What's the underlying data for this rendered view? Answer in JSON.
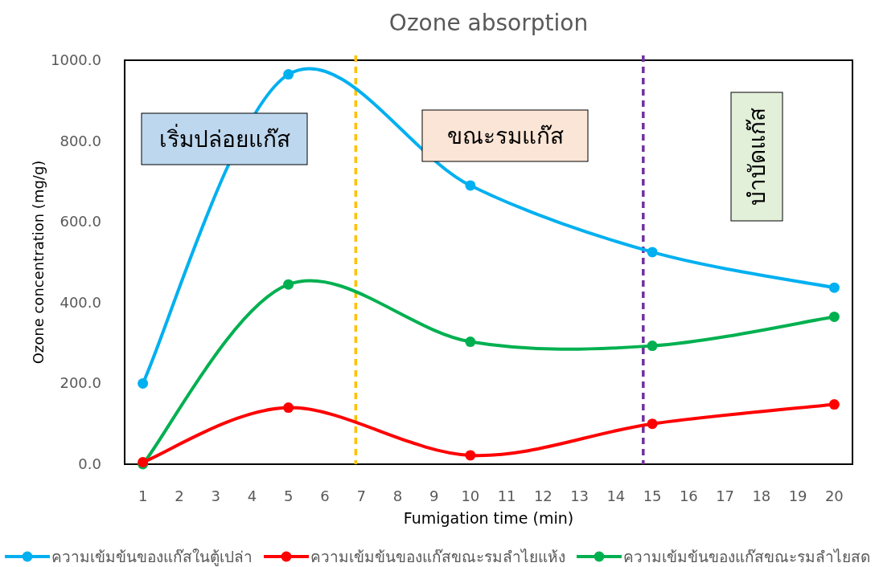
{
  "chart_data": {
    "type": "line",
    "title": "Ozone absorption",
    "xlabel": "Fumigation time  (min)",
    "ylabel": "Ozone concentration (mg/g)",
    "x": [
      1,
      5,
      10,
      15,
      20
    ],
    "series": [
      {
        "name": "ความเข้มข้นของแก๊สในตู้เปล่า",
        "color": "#00b0f0",
        "values": [
          200,
          965,
          690,
          525,
          437
        ]
      },
      {
        "name": "ความเข้มข้นของแก๊สขณะรมลำไยแห้ง",
        "color": "#ff0000",
        "values": [
          5,
          140,
          22,
          100,
          148
        ]
      },
      {
        "name": "ความเข้มข้นของแก๊สขณะรมลำไยสด",
        "color": "#00b050",
        "values": [
          0,
          445,
          303,
          293,
          365
        ]
      }
    ],
    "xlim": [
      0.5,
      20.5
    ],
    "xticks": [
      1,
      2,
      3,
      4,
      5,
      6,
      7,
      8,
      9,
      10,
      11,
      12,
      13,
      14,
      15,
      16,
      17,
      18,
      19,
      20
    ],
    "ylim": [
      0,
      1000
    ],
    "yticks": [
      {
        "value": 0,
        "label": "0.0"
      },
      {
        "value": 200,
        "label": "200.0"
      },
      {
        "value": 400,
        "label": "400.0"
      },
      {
        "value": 600,
        "label": "600.0"
      },
      {
        "value": 800,
        "label": "800.0"
      },
      {
        "value": 1000,
        "label": "1000.0"
      }
    ],
    "ref_lines": [
      {
        "axis": "x",
        "value": 6.85,
        "color": "#ffc000",
        "line_style": "dashed"
      },
      {
        "axis": "x",
        "value": 14.75,
        "color": "#7030a0",
        "line_style": "dashed"
      }
    ],
    "annotations": [
      "เริ่มปล่อยแก๊ส",
      "ขณะรมแก๊ส",
      "บำบัดแก๊ส"
    ],
    "legend": "bottom",
    "marker": "circle",
    "line_style": "solid",
    "grid": false
  }
}
